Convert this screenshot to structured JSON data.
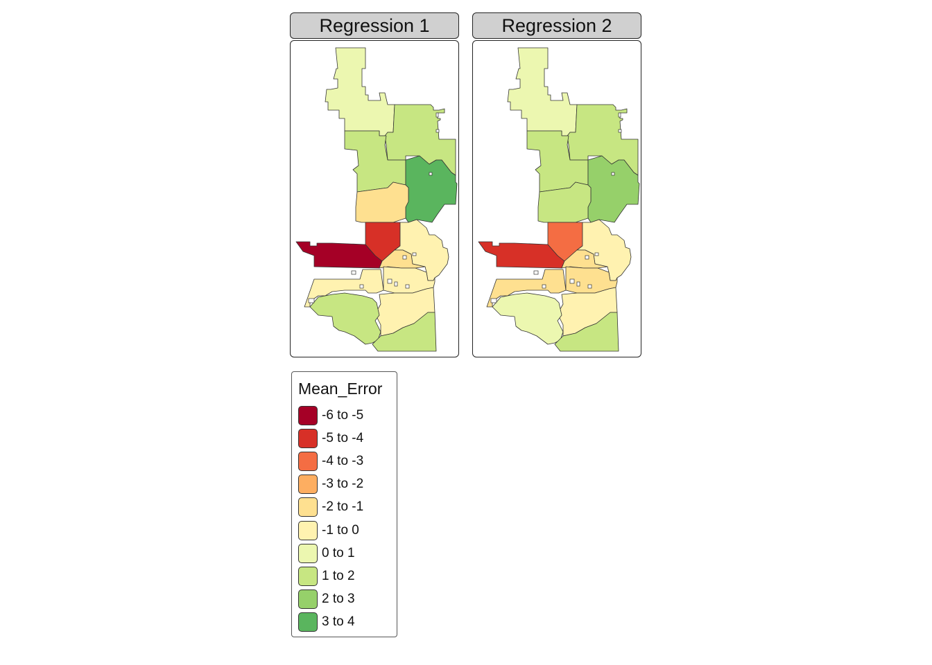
{
  "panels": [
    {
      "title": "Regression 1",
      "region_classes": {
        "north_top": "0 to 1",
        "north_right": "1 to 2",
        "mid_left": "1 to 2",
        "east_green": "3 to 4",
        "mid_orange": "-2 to -1",
        "center": "-5 to -4",
        "west": "-6 to -5",
        "east_pale": "-1 to 0",
        "center_small": "-2 to -1",
        "southwest": "-1 to 0",
        "south_mid": "-1 to 0",
        "south_center": "-1 to 0",
        "coast": "1 to 2",
        "bottom": "1 to 2"
      }
    },
    {
      "title": "Regression 2",
      "region_classes": {
        "north_top": "0 to 1",
        "north_right": "1 to 2",
        "mid_left": "1 to 2",
        "east_green": "2 to 3",
        "mid_orange": "1 to 2",
        "center": "-4 to -3",
        "west": "-5 to -4",
        "east_pale": "-1 to 0",
        "center_small": "-2 to -1",
        "southwest": "-2 to -1",
        "south_mid": "-2 to -1",
        "south_center": "-1 to 0",
        "coast": "0 to 1",
        "bottom": "1 to 2"
      }
    }
  ],
  "legend": {
    "title": "Mean_Error",
    "items": [
      {
        "label": "-6 to -5",
        "color": "#a50026"
      },
      {
        "label": "-5 to -4",
        "color": "#d73027"
      },
      {
        "label": "-4 to -3",
        "color": "#f46d43"
      },
      {
        "label": "-3 to -2",
        "color": "#fdae61"
      },
      {
        "label": "-2 to -1",
        "color": "#fee090"
      },
      {
        "label": "-1 to 0",
        "color": "#fff2b0"
      },
      {
        "label": "0 to 1",
        "color": "#ecf7b0"
      },
      {
        "label": "1 to 2",
        "color": "#c7e682"
      },
      {
        "label": "2 to 3",
        "color": "#96d06a"
      },
      {
        "label": "3 to 4",
        "color": "#5ab55e"
      }
    ]
  }
}
